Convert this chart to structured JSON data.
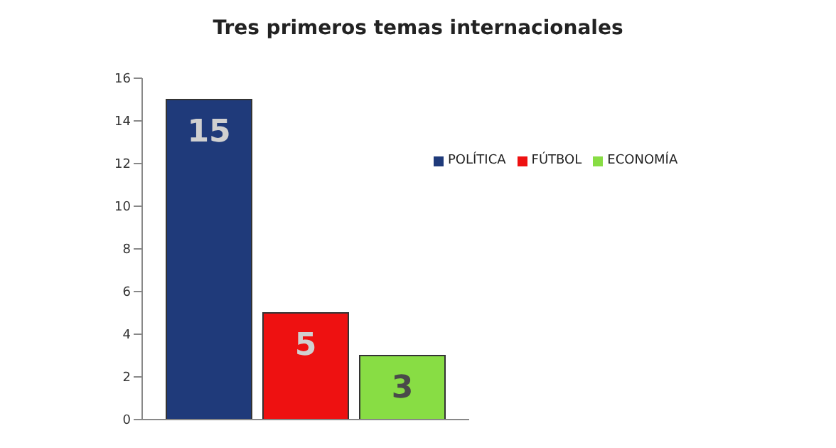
{
  "chart_data": {
    "type": "bar",
    "title": "Tres primeros temas internacionales",
    "categories": [
      null
    ],
    "series": [
      {
        "name": "POLÍTICA",
        "color": "#1f3a7a",
        "values": [
          15
        ]
      },
      {
        "name": "FÚTBOL",
        "color": "#ee1111",
        "values": [
          5
        ]
      },
      {
        "name": "ECONOMÍA",
        "color": "#88dd44",
        "values": [
          3
        ]
      }
    ],
    "ylim": [
      0,
      16
    ],
    "yticks": [
      0,
      2,
      4,
      6,
      8,
      10,
      12,
      14,
      16
    ],
    "grid": false,
    "legend": "right",
    "data_labels": true
  }
}
